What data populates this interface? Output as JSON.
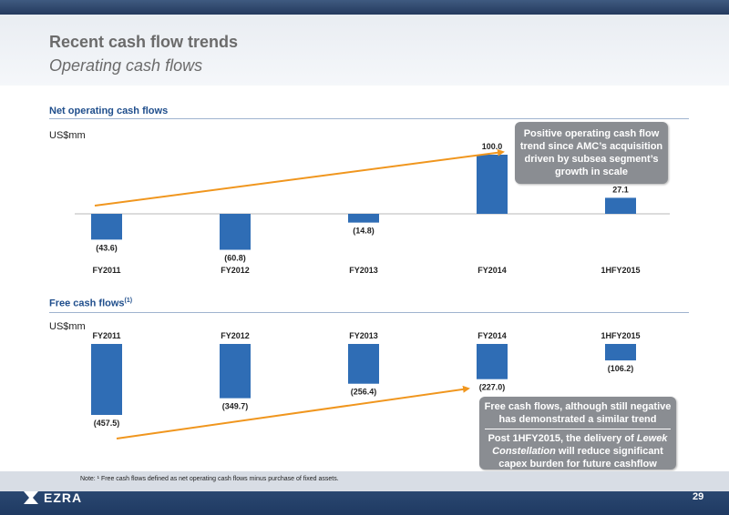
{
  "header": {
    "title": "Recent cash flow trends",
    "subtitle": "Operating cash flows"
  },
  "sections": {
    "net": {
      "title": "Net operating cash flows",
      "unit": "US$mm"
    },
    "free": {
      "title": "Free cash flows",
      "footnote_mark": "(1)",
      "unit": "US$mm"
    }
  },
  "callouts": {
    "net": "Positive operating cash flow trend since AMC’s acquisition driven by subsea segment’s growth in scale",
    "free_line1": "Free cash flows, although still negative has demonstrated a similar trend",
    "free_line2_pre": "Post 1HFY2015, the delivery of ",
    "free_line2_italic": "Lewek Constellation",
    "free_line2_post": " will reduce significant capex burden for future cashflow"
  },
  "footer": {
    "note": "Note: ¹ Free cash flows  defined as net operating cash flows minus purchase of fixed assets.",
    "logo_text": "EZRA",
    "page_number": "29"
  },
  "colors": {
    "bar": "#2f6db5",
    "arrow": "#f0961e",
    "section_title": "#1f4e8c",
    "callout_bg": "#8a8d92"
  },
  "chart_data": [
    {
      "type": "bar",
      "title": "Net operating cash flows",
      "ylabel": "US$mm",
      "categories": [
        "FY2011",
        "FY2012",
        "FY2013",
        "FY2014",
        "1HFY2015"
      ],
      "values": [
        -43.6,
        -60.8,
        -14.8,
        100.0,
        27.1
      ],
      "data_labels": [
        "(43.6)",
        "(60.8)",
        "(14.8)",
        "100.0",
        "27.1"
      ],
      "trend_arrow": "increasing",
      "grid": false,
      "legend": "none"
    },
    {
      "type": "bar",
      "title": "Free cash flows",
      "ylabel": "US$mm",
      "categories": [
        "FY2011",
        "FY2012",
        "FY2013",
        "FY2014",
        "1HFY2015"
      ],
      "values": [
        -457.5,
        -349.7,
        -256.4,
        -227.0,
        -106.2
      ],
      "data_labels": [
        "(457.5)",
        "(349.7)",
        "(256.4)",
        "(227.0)",
        "(106.2)"
      ],
      "trend_arrow": "increasing",
      "grid": false,
      "legend": "none"
    }
  ]
}
